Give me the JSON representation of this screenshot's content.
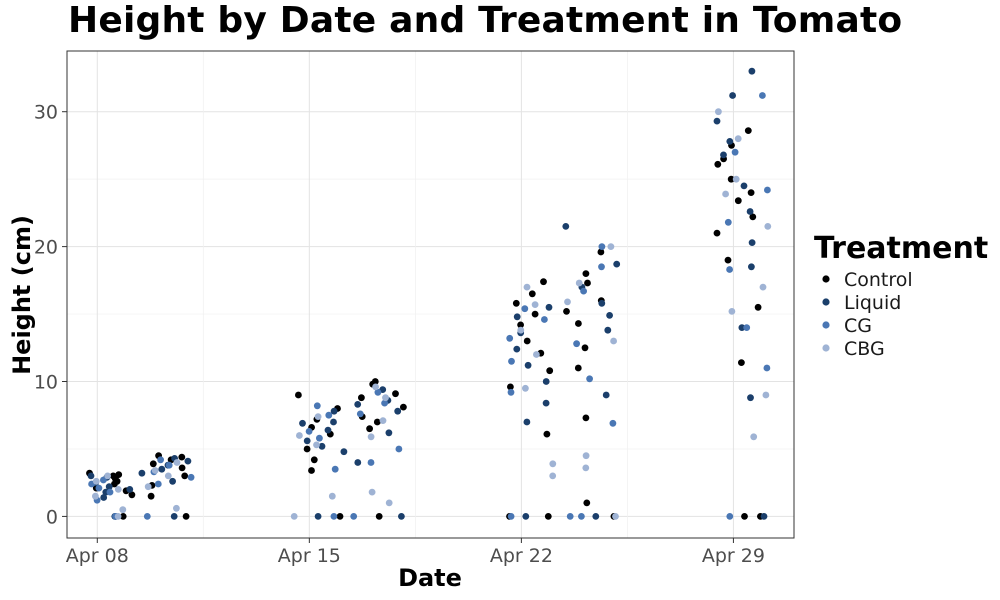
{
  "chart_data": {
    "type": "scatter",
    "title": "Height by Date and Treatment in Tomato",
    "xlabel": "Date",
    "ylabel": "Height (cm)",
    "x_ticks": [
      "Apr 08",
      "Apr 15",
      "Apr 22",
      "Apr 29"
    ],
    "x_range": [
      "2023-04-07",
      "2023-05-01"
    ],
    "ylim": [
      -1.6,
      34.5
    ],
    "y_ticks": [
      0,
      10,
      20,
      30
    ],
    "grid": true,
    "legend_title": "Treatment",
    "legend_position": "right",
    "series": [
      {
        "name": "Control",
        "color": "#000000",
        "points": [
          {
            "x": "2023-04-08",
            "y": 2.4
          },
          {
            "x": "2023-04-08",
            "y": 2.1
          },
          {
            "x": "2023-04-08",
            "y": 3.0
          },
          {
            "x": "2023-04-08",
            "y": 1.6
          },
          {
            "x": "2023-04-08",
            "y": 0.0
          },
          {
            "x": "2023-04-08",
            "y": 2.8
          },
          {
            "x": "2023-04-08",
            "y": 3.2
          },
          {
            "x": "2023-04-08",
            "y": 1.9
          },
          {
            "x": "2023-04-08",
            "y": 2.6
          },
          {
            "x": "2023-04-08",
            "y": 0.0
          },
          {
            "x": "2023-04-08",
            "y": 3.1
          },
          {
            "x": "2023-04-10",
            "y": 4.5
          },
          {
            "x": "2023-04-10",
            "y": 3.6
          },
          {
            "x": "2023-04-10",
            "y": 1.5
          },
          {
            "x": "2023-04-10",
            "y": 4.2
          },
          {
            "x": "2023-04-10",
            "y": 3.9
          },
          {
            "x": "2023-04-10",
            "y": 2.3
          },
          {
            "x": "2023-04-10",
            "y": 4.4
          },
          {
            "x": "2023-04-10",
            "y": 0.0
          },
          {
            "x": "2023-04-10",
            "y": 3.0
          },
          {
            "x": "2023-04-15",
            "y": 9.0
          },
          {
            "x": "2023-04-15",
            "y": 7.2
          },
          {
            "x": "2023-04-15",
            "y": 6.1
          },
          {
            "x": "2023-04-15",
            "y": 3.4
          },
          {
            "x": "2023-04-15",
            "y": 5.0
          },
          {
            "x": "2023-04-15",
            "y": 6.6
          },
          {
            "x": "2023-04-15",
            "y": 0.0
          },
          {
            "x": "2023-04-15",
            "y": 8.0
          },
          {
            "x": "2023-04-15",
            "y": 4.2
          },
          {
            "x": "2023-04-17",
            "y": 10.0
          },
          {
            "x": "2023-04-17",
            "y": 9.1
          },
          {
            "x": "2023-04-17",
            "y": 7.4
          },
          {
            "x": "2023-04-17",
            "y": 8.8
          },
          {
            "x": "2023-04-17",
            "y": 6.5
          },
          {
            "x": "2023-04-17",
            "y": 9.8
          },
          {
            "x": "2023-04-17",
            "y": 0.0
          },
          {
            "x": "2023-04-17",
            "y": 8.1
          },
          {
            "x": "2023-04-17",
            "y": 7.0
          },
          {
            "x": "2023-04-22",
            "y": 17.4
          },
          {
            "x": "2023-04-22",
            "y": 15.8
          },
          {
            "x": "2023-04-22",
            "y": 13.0
          },
          {
            "x": "2023-04-22",
            "y": 10.8
          },
          {
            "x": "2023-04-22",
            "y": 6.1
          },
          {
            "x": "2023-04-22",
            "y": 14.2
          },
          {
            "x": "2023-04-22",
            "y": 16.5
          },
          {
            "x": "2023-04-22",
            "y": 0.0
          },
          {
            "x": "2023-04-22",
            "y": 12.1
          },
          {
            "x": "2023-04-22",
            "y": 9.6
          },
          {
            "x": "2023-04-22",
            "y": 15.0
          },
          {
            "x": "2023-04-22",
            "y": 0.0
          },
          {
            "x": "2023-04-24",
            "y": 19.6
          },
          {
            "x": "2023-04-24",
            "y": 18.0
          },
          {
            "x": "2023-04-24",
            "y": 16.0
          },
          {
            "x": "2023-04-24",
            "y": 14.3
          },
          {
            "x": "2023-04-24",
            "y": 12.5
          },
          {
            "x": "2023-04-24",
            "y": 7.3
          },
          {
            "x": "2023-04-24",
            "y": 1.0
          },
          {
            "x": "2023-04-24",
            "y": 0.0
          },
          {
            "x": "2023-04-24",
            "y": 17.3
          },
          {
            "x": "2023-04-24",
            "y": 15.2
          },
          {
            "x": "2023-04-24",
            "y": 11.0
          },
          {
            "x": "2023-04-29",
            "y": 26.5
          },
          {
            "x": "2023-04-29",
            "y": 24.0
          },
          {
            "x": "2023-04-29",
            "y": 21.0
          },
          {
            "x": "2023-04-29",
            "y": 27.5
          },
          {
            "x": "2023-04-29",
            "y": 25.0
          },
          {
            "x": "2023-04-29",
            "y": 23.4
          },
          {
            "x": "2023-04-29",
            "y": 19.0
          },
          {
            "x": "2023-04-29",
            "y": 15.5
          },
          {
            "x": "2023-04-29",
            "y": 11.4
          },
          {
            "x": "2023-04-29",
            "y": 0.0
          },
          {
            "x": "2023-04-29",
            "y": 0.0
          },
          {
            "x": "2023-04-29",
            "y": 28.6
          },
          {
            "x": "2023-04-29",
            "y": 22.2
          },
          {
            "x": "2023-04-29",
            "y": 26.1
          }
        ]
      },
      {
        "name": "Liquid",
        "color": "#1b3f6b",
        "points": [
          {
            "x": "2023-04-08",
            "y": 2.2
          },
          {
            "x": "2023-04-08",
            "y": 1.4
          },
          {
            "x": "2023-04-08",
            "y": 2.9
          },
          {
            "x": "2023-04-08",
            "y": 0.0
          },
          {
            "x": "2023-04-08",
            "y": 2.5
          },
          {
            "x": "2023-04-08",
            "y": 1.8
          },
          {
            "x": "2023-04-08",
            "y": 2.0
          },
          {
            "x": "2023-04-08",
            "y": 3.0
          },
          {
            "x": "2023-04-10",
            "y": 3.8
          },
          {
            "x": "2023-04-10",
            "y": 4.1
          },
          {
            "x": "2023-04-10",
            "y": 2.6
          },
          {
            "x": "2023-04-10",
            "y": 3.2
          },
          {
            "x": "2023-04-10",
            "y": 0.0
          },
          {
            "x": "2023-04-10",
            "y": 4.3
          },
          {
            "x": "2023-04-10",
            "y": 3.5
          },
          {
            "x": "2023-04-15",
            "y": 7.8
          },
          {
            "x": "2023-04-15",
            "y": 6.4
          },
          {
            "x": "2023-04-15",
            "y": 5.6
          },
          {
            "x": "2023-04-15",
            "y": 7.0
          },
          {
            "x": "2023-04-15",
            "y": 4.8
          },
          {
            "x": "2023-04-15",
            "y": 0.0
          },
          {
            "x": "2023-04-15",
            "y": 6.9
          },
          {
            "x": "2023-04-15",
            "y": 5.2
          },
          {
            "x": "2023-04-17",
            "y": 8.6
          },
          {
            "x": "2023-04-17",
            "y": 7.8
          },
          {
            "x": "2023-04-17",
            "y": 9.4
          },
          {
            "x": "2023-04-17",
            "y": 6.2
          },
          {
            "x": "2023-04-17",
            "y": 8.3
          },
          {
            "x": "2023-04-17",
            "y": 0.0
          },
          {
            "x": "2023-04-17",
            "y": 4.0
          },
          {
            "x": "2023-04-22",
            "y": 14.8
          },
          {
            "x": "2023-04-22",
            "y": 11.2
          },
          {
            "x": "2023-04-22",
            "y": 8.4
          },
          {
            "x": "2023-04-22",
            "y": 13.6
          },
          {
            "x": "2023-04-22",
            "y": 15.5
          },
          {
            "x": "2023-04-22",
            "y": 12.4
          },
          {
            "x": "2023-04-22",
            "y": 10.0
          },
          {
            "x": "2023-04-22",
            "y": 0.0
          },
          {
            "x": "2023-04-22",
            "y": 7.0
          },
          {
            "x": "2023-04-24",
            "y": 21.5
          },
          {
            "x": "2023-04-24",
            "y": 17.0
          },
          {
            "x": "2023-04-24",
            "y": 15.8
          },
          {
            "x": "2023-04-24",
            "y": 13.8
          },
          {
            "x": "2023-04-24",
            "y": 9.0
          },
          {
            "x": "2023-04-24",
            "y": 18.7
          },
          {
            "x": "2023-04-24",
            "y": 0.0
          },
          {
            "x": "2023-04-24",
            "y": 14.9
          },
          {
            "x": "2023-04-29",
            "y": 31.2
          },
          {
            "x": "2023-04-29",
            "y": 29.3
          },
          {
            "x": "2023-04-29",
            "y": 27.8
          },
          {
            "x": "2023-04-29",
            "y": 24.5
          },
          {
            "x": "2023-04-29",
            "y": 22.6
          },
          {
            "x": "2023-04-29",
            "y": 20.3
          },
          {
            "x": "2023-04-29",
            "y": 18.5
          },
          {
            "x": "2023-04-29",
            "y": 14.0
          },
          {
            "x": "2023-04-29",
            "y": 8.8
          },
          {
            "x": "2023-04-29",
            "y": 0.0
          },
          {
            "x": "2023-04-29",
            "y": 33.0
          },
          {
            "x": "2023-04-29",
            "y": 26.8
          }
        ]
      },
      {
        "name": "CG",
        "color": "#4a77b4",
        "points": [
          {
            "x": "2023-04-08",
            "y": 1.8
          },
          {
            "x": "2023-04-08",
            "y": 2.4
          },
          {
            "x": "2023-04-08",
            "y": 0.0
          },
          {
            "x": "2023-04-08",
            "y": 2.7
          },
          {
            "x": "2023-04-08",
            "y": 1.2
          },
          {
            "x": "2023-04-08",
            "y": 0.0
          },
          {
            "x": "2023-04-08",
            "y": 2.1
          },
          {
            "x": "2023-04-10",
            "y": 4.2
          },
          {
            "x": "2023-04-10",
            "y": 3.3
          },
          {
            "x": "2023-04-10",
            "y": 2.4
          },
          {
            "x": "2023-04-10",
            "y": 0.0
          },
          {
            "x": "2023-04-10",
            "y": 3.8
          },
          {
            "x": "2023-04-10",
            "y": 2.9
          },
          {
            "x": "2023-04-15",
            "y": 7.5
          },
          {
            "x": "2023-04-15",
            "y": 5.8
          },
          {
            "x": "2023-04-15",
            "y": 3.5
          },
          {
            "x": "2023-04-15",
            "y": 0.0
          },
          {
            "x": "2023-04-15",
            "y": 6.3
          },
          {
            "x": "2023-04-15",
            "y": 8.2
          },
          {
            "x": "2023-04-17",
            "y": 9.2
          },
          {
            "x": "2023-04-17",
            "y": 7.6
          },
          {
            "x": "2023-04-17",
            "y": 5.0
          },
          {
            "x": "2023-04-17",
            "y": 4.0
          },
          {
            "x": "2023-04-17",
            "y": 0.0
          },
          {
            "x": "2023-04-17",
            "y": 8.4
          },
          {
            "x": "2023-04-22",
            "y": 15.4
          },
          {
            "x": "2023-04-22",
            "y": 13.2
          },
          {
            "x": "2023-04-22",
            "y": 11.5
          },
          {
            "x": "2023-04-22",
            "y": 9.2
          },
          {
            "x": "2023-04-22",
            "y": 0.0
          },
          {
            "x": "2023-04-22",
            "y": 14.6
          },
          {
            "x": "2023-04-24",
            "y": 20.0
          },
          {
            "x": "2023-04-24",
            "y": 18.5
          },
          {
            "x": "2023-04-24",
            "y": 16.7
          },
          {
            "x": "2023-04-24",
            "y": 12.8
          },
          {
            "x": "2023-04-24",
            "y": 10.2
          },
          {
            "x": "2023-04-24",
            "y": 6.9
          },
          {
            "x": "2023-04-24",
            "y": 0.0
          },
          {
            "x": "2023-04-24",
            "y": 0.0
          },
          {
            "x": "2023-04-29",
            "y": 31.2
          },
          {
            "x": "2023-04-29",
            "y": 27.0
          },
          {
            "x": "2023-04-29",
            "y": 24.2
          },
          {
            "x": "2023-04-29",
            "y": 21.8
          },
          {
            "x": "2023-04-29",
            "y": 18.3
          },
          {
            "x": "2023-04-29",
            "y": 14.0
          },
          {
            "x": "2023-04-29",
            "y": 11.0
          },
          {
            "x": "2023-04-29",
            "y": 0.0
          }
        ]
      },
      {
        "name": "CBG",
        "color": "#9fb3d4",
        "points": [
          {
            "x": "2023-04-08",
            "y": 2.0
          },
          {
            "x": "2023-04-08",
            "y": 2.6
          },
          {
            "x": "2023-04-08",
            "y": 0.5
          },
          {
            "x": "2023-04-08",
            "y": 1.5
          },
          {
            "x": "2023-04-08",
            "y": 3.0
          },
          {
            "x": "2023-04-08",
            "y": 0.0
          },
          {
            "x": "2023-04-10",
            "y": 3.0
          },
          {
            "x": "2023-04-10",
            "y": 4.0
          },
          {
            "x": "2023-04-10",
            "y": 0.6
          },
          {
            "x": "2023-04-10",
            "y": 3.4
          },
          {
            "x": "2023-04-10",
            "y": 2.2
          },
          {
            "x": "2023-04-15",
            "y": 1.5
          },
          {
            "x": "2023-04-15",
            "y": 0.0
          },
          {
            "x": "2023-04-15",
            "y": 6.0
          },
          {
            "x": "2023-04-15",
            "y": 7.4
          },
          {
            "x": "2023-04-15",
            "y": 5.3
          },
          {
            "x": "2023-04-17",
            "y": 1.8
          },
          {
            "x": "2023-04-17",
            "y": 1.0
          },
          {
            "x": "2023-04-17",
            "y": 8.8
          },
          {
            "x": "2023-04-17",
            "y": 7.1
          },
          {
            "x": "2023-04-17",
            "y": 5.9
          },
          {
            "x": "2023-04-17",
            "y": 9.6
          },
          {
            "x": "2023-04-22",
            "y": 17.0
          },
          {
            "x": "2023-04-22",
            "y": 15.7
          },
          {
            "x": "2023-04-22",
            "y": 13.8
          },
          {
            "x": "2023-04-22",
            "y": 3.9
          },
          {
            "x": "2023-04-22",
            "y": 3.0
          },
          {
            "x": "2023-04-22",
            "y": 12.0
          },
          {
            "x": "2023-04-22",
            "y": 9.5
          },
          {
            "x": "2023-04-24",
            "y": 20.0
          },
          {
            "x": "2023-04-24",
            "y": 17.3
          },
          {
            "x": "2023-04-24",
            "y": 15.9
          },
          {
            "x": "2023-04-24",
            "y": 4.5
          },
          {
            "x": "2023-04-24",
            "y": 3.6
          },
          {
            "x": "2023-04-24",
            "y": 13.0
          },
          {
            "x": "2023-04-24",
            "y": 0.0
          },
          {
            "x": "2023-04-29",
            "y": 30.0
          },
          {
            "x": "2023-04-29",
            "y": 28.0
          },
          {
            "x": "2023-04-29",
            "y": 25.0
          },
          {
            "x": "2023-04-29",
            "y": 23.9
          },
          {
            "x": "2023-04-29",
            "y": 17.0
          },
          {
            "x": "2023-04-29",
            "y": 15.2
          },
          {
            "x": "2023-04-29",
            "y": 9.0
          },
          {
            "x": "2023-04-29",
            "y": 5.9
          },
          {
            "x": "2023-04-29",
            "y": 21.5
          }
        ]
      }
    ]
  }
}
